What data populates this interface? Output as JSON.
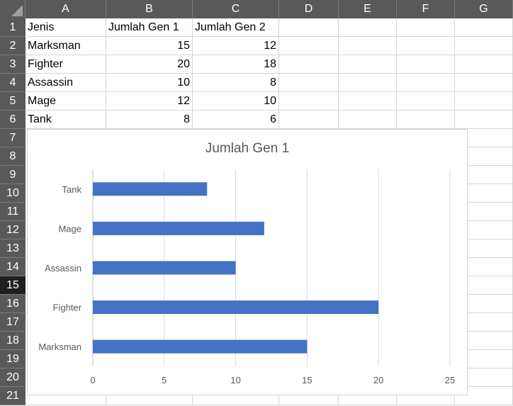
{
  "columns": [
    "A",
    "B",
    "C",
    "D",
    "E",
    "F",
    "G"
  ],
  "rows": [
    "1",
    "2",
    "3",
    "4",
    "5",
    "6",
    "7",
    "8",
    "9",
    "10",
    "11",
    "12",
    "13",
    "14",
    "15",
    "16",
    "17",
    "18",
    "19",
    "20",
    "21"
  ],
  "active_row": "15",
  "table": {
    "header": [
      "Jenis",
      "Jumlah Gen 1",
      "Jumlah Gen 2"
    ],
    "data": [
      [
        "Marksman",
        "15",
        "12"
      ],
      [
        "Fighter",
        "20",
        "18"
      ],
      [
        "Assassin",
        "10",
        "8"
      ],
      [
        "Mage",
        "12",
        "10"
      ],
      [
        "Tank",
        "8",
        "6"
      ]
    ]
  },
  "colors": {
    "header_bg": "#595959",
    "active_row_bg": "#202020",
    "bar": "#4472c4",
    "gridline": "#d9d9d9"
  },
  "chart_data": {
    "type": "bar",
    "orientation": "horizontal",
    "title": "Jumlah Gen 1",
    "categories": [
      "Marksman",
      "Fighter",
      "Assassin",
      "Mage",
      "Tank"
    ],
    "values": [
      15,
      20,
      10,
      12,
      8
    ],
    "xlim": [
      0,
      25
    ],
    "xticks": [
      "0",
      "5",
      "10",
      "15",
      "20",
      "25"
    ],
    "grid": true,
    "legend": "none"
  }
}
